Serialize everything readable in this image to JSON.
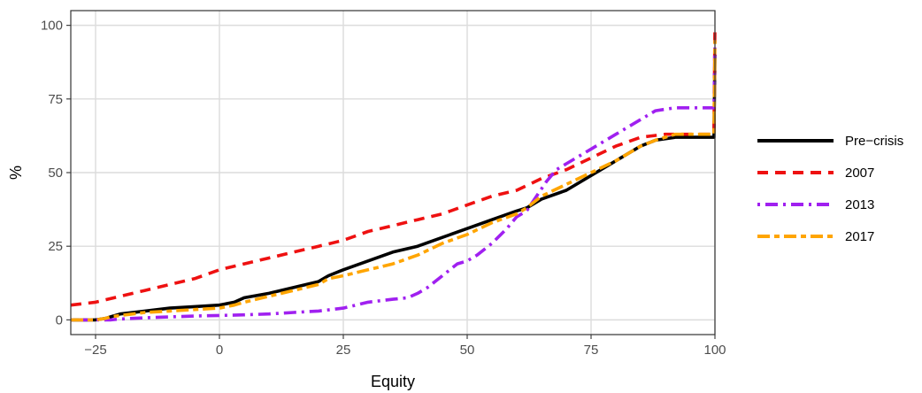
{
  "chart_data": {
    "type": "line",
    "title": "",
    "xlabel": "Equity",
    "ylabel": "%",
    "xlim": [
      -30,
      100
    ],
    "ylim": [
      -5,
      105
    ],
    "x_ticks": [
      -25,
      0,
      25,
      50,
      75,
      100
    ],
    "y_ticks": [
      0,
      25,
      50,
      75,
      100
    ],
    "x_tick_labels": [
      "−25",
      "0",
      "25",
      "50",
      "75",
      "100"
    ],
    "y_tick_labels": [
      "0",
      "25",
      "50",
      "75",
      "100"
    ],
    "grid": true,
    "legend_position": "right",
    "series": [
      {
        "name": "Pre−crisis",
        "color": "#000000",
        "dash": "solid",
        "points": [
          [
            -30,
            0
          ],
          [
            -25,
            0
          ],
          [
            -23,
            0.5
          ],
          [
            -22,
            1
          ],
          [
            -20,
            2
          ],
          [
            -15,
            3
          ],
          [
            -10,
            4
          ],
          [
            -5,
            4.5
          ],
          [
            0,
            5
          ],
          [
            3,
            6
          ],
          [
            5,
            7.5
          ],
          [
            10,
            9
          ],
          [
            15,
            11
          ],
          [
            20,
            13
          ],
          [
            22,
            15
          ],
          [
            25,
            17
          ],
          [
            30,
            20
          ],
          [
            35,
            23
          ],
          [
            40,
            25
          ],
          [
            45,
            28
          ],
          [
            50,
            31
          ],
          [
            55,
            34
          ],
          [
            60,
            37
          ],
          [
            62,
            38
          ],
          [
            65,
            41
          ],
          [
            70,
            44
          ],
          [
            75,
            49
          ],
          [
            80,
            54
          ],
          [
            85,
            59
          ],
          [
            88,
            61
          ],
          [
            92,
            62
          ],
          [
            99.8,
            62
          ],
          [
            100,
            90
          ]
        ]
      },
      {
        "name": "2007",
        "color": "#ee1111",
        "dash": "dashed",
        "points": [
          [
            -30,
            5
          ],
          [
            -25,
            6
          ],
          [
            -20,
            8
          ],
          [
            -15,
            10
          ],
          [
            -10,
            12
          ],
          [
            -5,
            14
          ],
          [
            0,
            17
          ],
          [
            5,
            19
          ],
          [
            10,
            21
          ],
          [
            15,
            23
          ],
          [
            20,
            25
          ],
          [
            25,
            27
          ],
          [
            30,
            30
          ],
          [
            35,
            32
          ],
          [
            40,
            34
          ],
          [
            45,
            36
          ],
          [
            50,
            39
          ],
          [
            55,
            42
          ],
          [
            60,
            44
          ],
          [
            65,
            48
          ],
          [
            70,
            51
          ],
          [
            75,
            55
          ],
          [
            80,
            59
          ],
          [
            85,
            62
          ],
          [
            90,
            63
          ],
          [
            95,
            63
          ],
          [
            99.8,
            63
          ],
          [
            100,
            100
          ]
        ]
      },
      {
        "name": "2013",
        "color": "#a020f0",
        "dash": "dotdash",
        "points": [
          [
            -30,
            0
          ],
          [
            -25,
            0
          ],
          [
            -22,
            0
          ],
          [
            -20,
            0.3
          ],
          [
            -15,
            0.7
          ],
          [
            -10,
            1
          ],
          [
            -5,
            1.3
          ],
          [
            0,
            1.5
          ],
          [
            5,
            1.7
          ],
          [
            10,
            2
          ],
          [
            15,
            2.5
          ],
          [
            20,
            3
          ],
          [
            25,
            4
          ],
          [
            30,
            6
          ],
          [
            35,
            7
          ],
          [
            38,
            7.5
          ],
          [
            40,
            9
          ],
          [
            42,
            11
          ],
          [
            45,
            15
          ],
          [
            48,
            19
          ],
          [
            50,
            20
          ],
          [
            52,
            22
          ],
          [
            55,
            26
          ],
          [
            58,
            31
          ],
          [
            60,
            35
          ],
          [
            62,
            37
          ],
          [
            64,
            42
          ],
          [
            66,
            47
          ],
          [
            68,
            51
          ],
          [
            70,
            53
          ],
          [
            75,
            58
          ],
          [
            80,
            63
          ],
          [
            85,
            68
          ],
          [
            88,
            71
          ],
          [
            92,
            72
          ],
          [
            99.8,
            72
          ],
          [
            100,
            95
          ]
        ]
      },
      {
        "name": "2017",
        "color": "#ffa500",
        "dash": "twodash",
        "points": [
          [
            -30,
            0
          ],
          [
            -25,
            0
          ],
          [
            -23,
            0.5
          ],
          [
            -22,
            1
          ],
          [
            -20,
            1.5
          ],
          [
            -15,
            2.5
          ],
          [
            -10,
            3
          ],
          [
            -5,
            3.5
          ],
          [
            0,
            4
          ],
          [
            3,
            5
          ],
          [
            5,
            6
          ],
          [
            10,
            8
          ],
          [
            15,
            10
          ],
          [
            20,
            12
          ],
          [
            22,
            14
          ],
          [
            25,
            15
          ],
          [
            30,
            17
          ],
          [
            35,
            19
          ],
          [
            40,
            22
          ],
          [
            45,
            26
          ],
          [
            50,
            29
          ],
          [
            55,
            33
          ],
          [
            60,
            36
          ],
          [
            62,
            38
          ],
          [
            65,
            42
          ],
          [
            70,
            46
          ],
          [
            75,
            50
          ],
          [
            80,
            54
          ],
          [
            85,
            59
          ],
          [
            88,
            61
          ],
          [
            92,
            63
          ],
          [
            99.8,
            63
          ],
          [
            100,
            95
          ]
        ]
      }
    ]
  }
}
